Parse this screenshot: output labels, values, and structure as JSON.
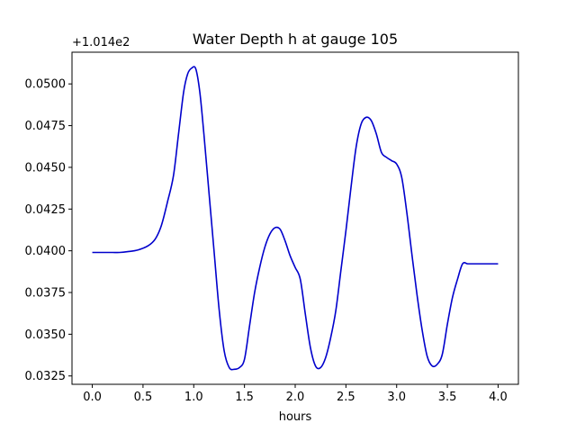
{
  "chart_data": {
    "type": "line",
    "title": "Water Depth h at gauge 105",
    "xlabel": "hours",
    "ylabel": "",
    "y_offset_label": "+1.014e2",
    "xlim": [
      -0.2,
      4.2
    ],
    "ylim": [
      0.032,
      0.0519
    ],
    "x_ticks": [
      0.0,
      0.5,
      1.0,
      1.5,
      2.0,
      2.5,
      3.0,
      3.5,
      4.0
    ],
    "x_tick_labels": [
      "0.0",
      "0.5",
      "1.0",
      "1.5",
      "2.0",
      "2.5",
      "3.0",
      "3.5",
      "4.0"
    ],
    "y_ticks": [
      0.0325,
      0.035,
      0.0375,
      0.04,
      0.0425,
      0.045,
      0.0475,
      0.05
    ],
    "y_tick_labels": [
      "0.0325",
      "0.0350",
      "0.0375",
      "0.0400",
      "0.0425",
      "0.0450",
      "0.0475",
      "0.0500"
    ],
    "grid": false,
    "series": [
      {
        "color": "#0000cc",
        "x": [
          0.0,
          0.1,
          0.2,
          0.27,
          0.35,
          0.45,
          0.55,
          0.62,
          0.68,
          0.74,
          0.8,
          0.85,
          0.9,
          0.94,
          0.98,
          1.02,
          1.06,
          1.1,
          1.15,
          1.2,
          1.25,
          1.3,
          1.35,
          1.4,
          1.45,
          1.5,
          1.55,
          1.6,
          1.65,
          1.7,
          1.75,
          1.8,
          1.85,
          1.9,
          1.95,
          2.0,
          2.05,
          2.1,
          2.15,
          2.2,
          2.25,
          2.3,
          2.35,
          2.4,
          2.45,
          2.5,
          2.55,
          2.6,
          2.65,
          2.7,
          2.75,
          2.8,
          2.85,
          2.9,
          2.95,
          3.0,
          3.05,
          3.1,
          3.15,
          3.2,
          3.25,
          3.3,
          3.35,
          3.4,
          3.45,
          3.5,
          3.55,
          3.6,
          3.65,
          3.7,
          3.75,
          3.8,
          3.85,
          3.9,
          3.95,
          4.0
        ],
        "y": [
          0.0399,
          0.0399,
          0.0399,
          0.0399,
          0.03995,
          0.04005,
          0.0403,
          0.0407,
          0.0415,
          0.0429,
          0.0445,
          0.047,
          0.0495,
          0.0506,
          0.05095,
          0.0509,
          0.0495,
          0.047,
          0.0435,
          0.04,
          0.0365,
          0.034,
          0.033,
          0.0329,
          0.033,
          0.0335,
          0.0355,
          0.0375,
          0.039,
          0.0402,
          0.041,
          0.04138,
          0.0413,
          0.0406,
          0.0397,
          0.039,
          0.0383,
          0.0362,
          0.0342,
          0.0331,
          0.033,
          0.0336,
          0.0348,
          0.0364,
          0.0388,
          0.0412,
          0.0438,
          0.0462,
          0.0476,
          0.048,
          0.0478,
          0.047,
          0.0459,
          0.0456,
          0.0454,
          0.0452,
          0.0444,
          0.0423,
          0.0398,
          0.0374,
          0.0353,
          0.0337,
          0.0331,
          0.0332,
          0.0338,
          0.0356,
          0.0372,
          0.0383,
          0.03922,
          0.03922,
          0.03922,
          0.03922,
          0.03922,
          0.03922,
          0.03922,
          0.03922
        ]
      }
    ]
  }
}
